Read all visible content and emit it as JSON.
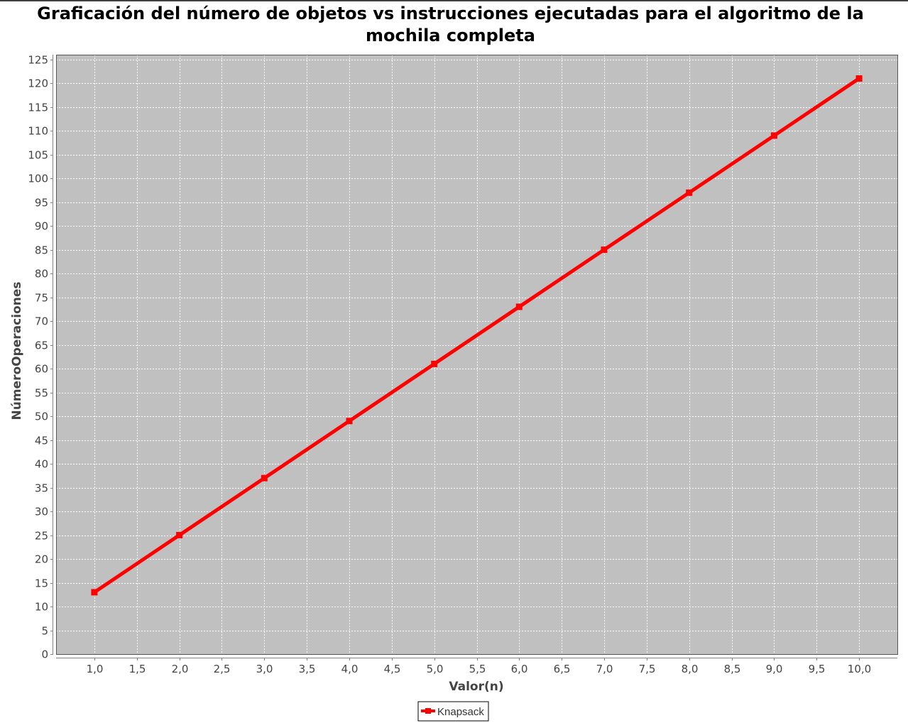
{
  "chart_data": {
    "type": "line",
    "title": "Graficación del número de objetos vs instrucciones ejecutadas para el algoritmo de la mochila completa",
    "xlabel": "Valor(n)",
    "ylabel": "NúmeroOperaciones",
    "xlim": [
      0.55,
      10.45
    ],
    "ylim": [
      0,
      126
    ],
    "x_ticks": [
      "1,0",
      "1,5",
      "2,0",
      "2,5",
      "3,0",
      "3,5",
      "4,0",
      "4,5",
      "5,0",
      "5,5",
      "6,0",
      "6,5",
      "7,0",
      "7,5",
      "8,0",
      "8,5",
      "9,0",
      "9,5",
      "10,0"
    ],
    "y_ticks": [
      "0",
      "5",
      "10",
      "15",
      "20",
      "25",
      "30",
      "35",
      "40",
      "45",
      "50",
      "55",
      "60",
      "65",
      "70",
      "75",
      "80",
      "85",
      "90",
      "95",
      "100",
      "105",
      "110",
      "115",
      "120",
      "125"
    ],
    "grid": true,
    "legend_position": "bottom-center",
    "plot_background": "#c0c0c0",
    "series": [
      {
        "name": "Knapsack",
        "color": "#ff0000",
        "marker": "square",
        "x": [
          1,
          2,
          3,
          4,
          5,
          6,
          7,
          8,
          9,
          10
        ],
        "y": [
          13,
          25,
          37,
          49,
          61,
          73,
          85,
          97,
          109,
          121
        ]
      }
    ]
  }
}
